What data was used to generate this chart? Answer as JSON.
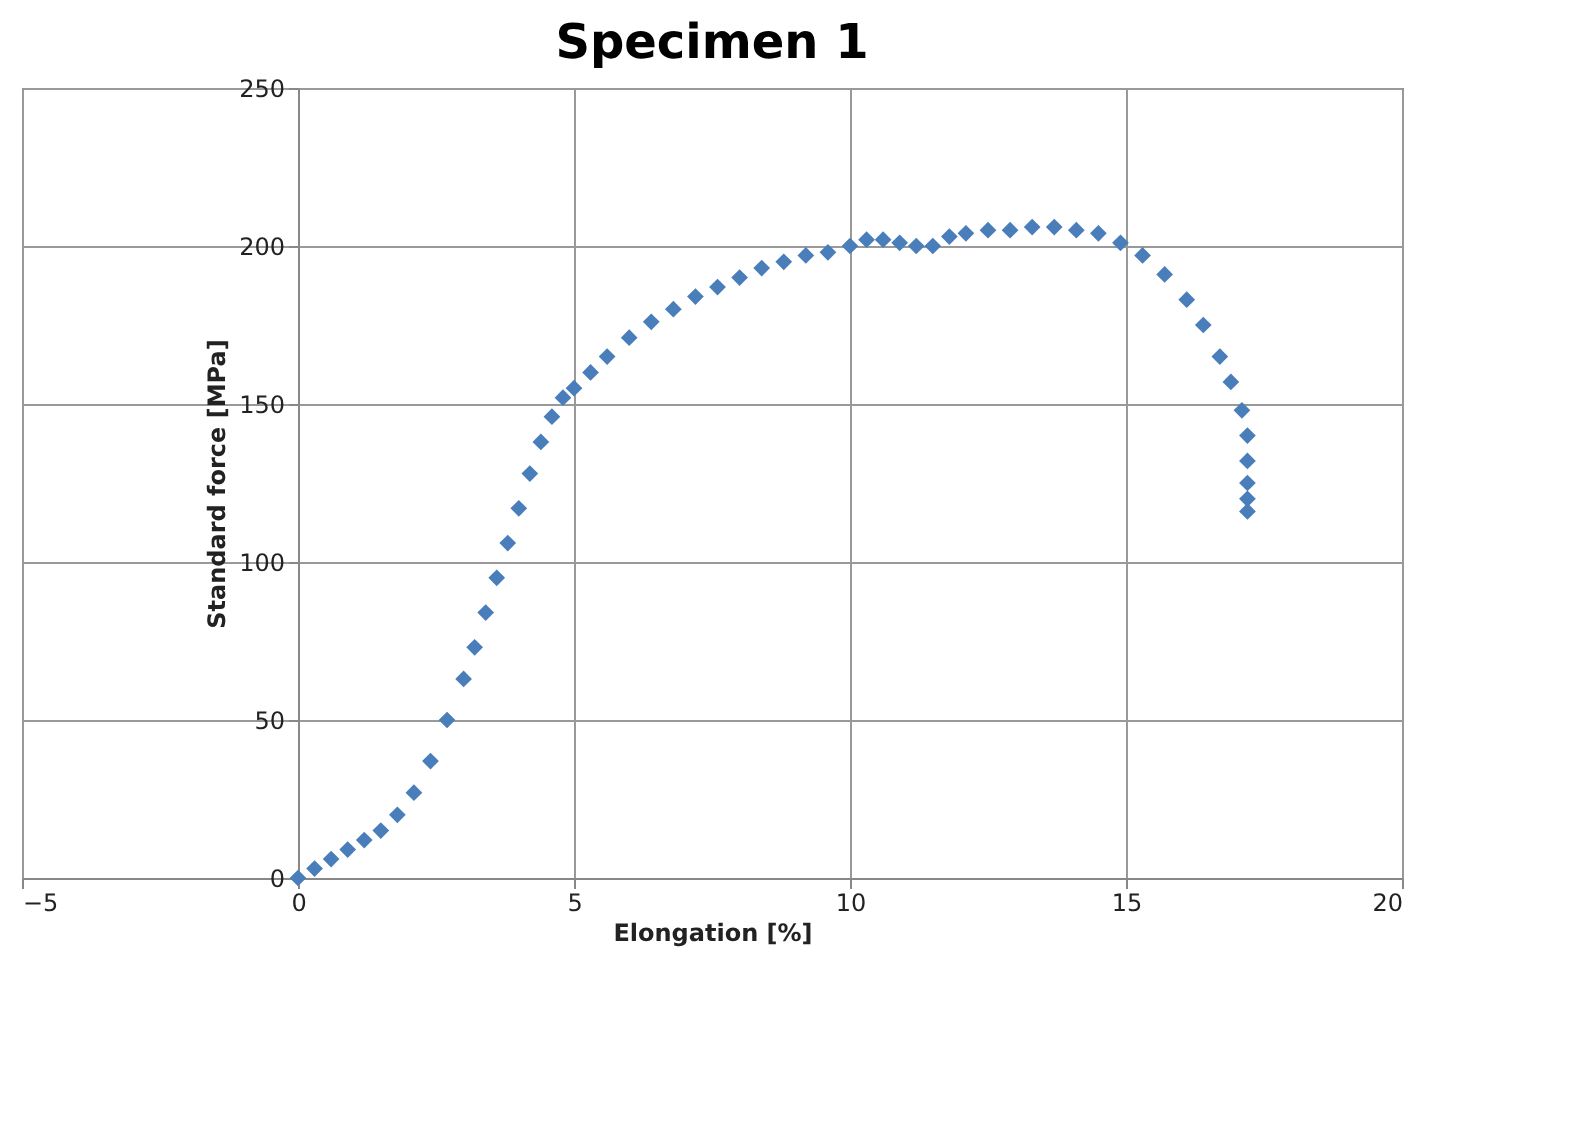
{
  "chart_data": {
    "type": "scatter",
    "title": "Specimen 1",
    "xlabel": "Elongation [%]",
    "ylabel": "Standard force [MPa]",
    "xlim": [
      -5,
      20
    ],
    "xticks": [
      -5,
      0,
      5,
      10,
      15,
      20
    ],
    "ylim": [
      0,
      250
    ],
    "yticks": [
      0,
      50,
      100,
      150,
      200,
      250
    ],
    "grid": true,
    "marker": "diamond",
    "series": [
      {
        "color": "#4a7ebb",
        "x": [
          0,
          0.3,
          0.6,
          0.9,
          1.2,
          1.5,
          1.8,
          2.1,
          2.4,
          2.7,
          3,
          3.2,
          3.4,
          3.6,
          3.8,
          4,
          4.2,
          4.4,
          4.6,
          4.8,
          5,
          5.3,
          5.6,
          6,
          6.4,
          6.8,
          7.2,
          7.6,
          8,
          8.4,
          8.8,
          9.2,
          9.6,
          10,
          10.3,
          10.6,
          10.9,
          11.2,
          11.5,
          11.8,
          12.1,
          12.5,
          12.9,
          13.3,
          13.7,
          14.1,
          14.5,
          14.9,
          15.3,
          15.7,
          16.1,
          16.4,
          16.7,
          16.9,
          17.1,
          17.2,
          17.2,
          17.2,
          17.2,
          17.2
        ],
        "values": [
          0,
          3,
          6,
          9,
          12,
          15,
          20,
          27,
          37,
          50,
          63,
          73,
          84,
          95,
          106,
          117,
          128,
          138,
          146,
          152,
          155,
          160,
          165,
          171,
          176,
          180,
          184,
          187,
          190,
          193,
          195,
          197,
          198,
          200,
          202,
          202,
          201,
          200,
          200,
          203,
          204,
          205,
          205,
          206,
          206,
          205,
          204,
          201,
          197,
          191,
          183,
          175,
          165,
          157,
          148,
          140,
          132,
          125,
          120,
          116
        ]
      }
    ]
  }
}
